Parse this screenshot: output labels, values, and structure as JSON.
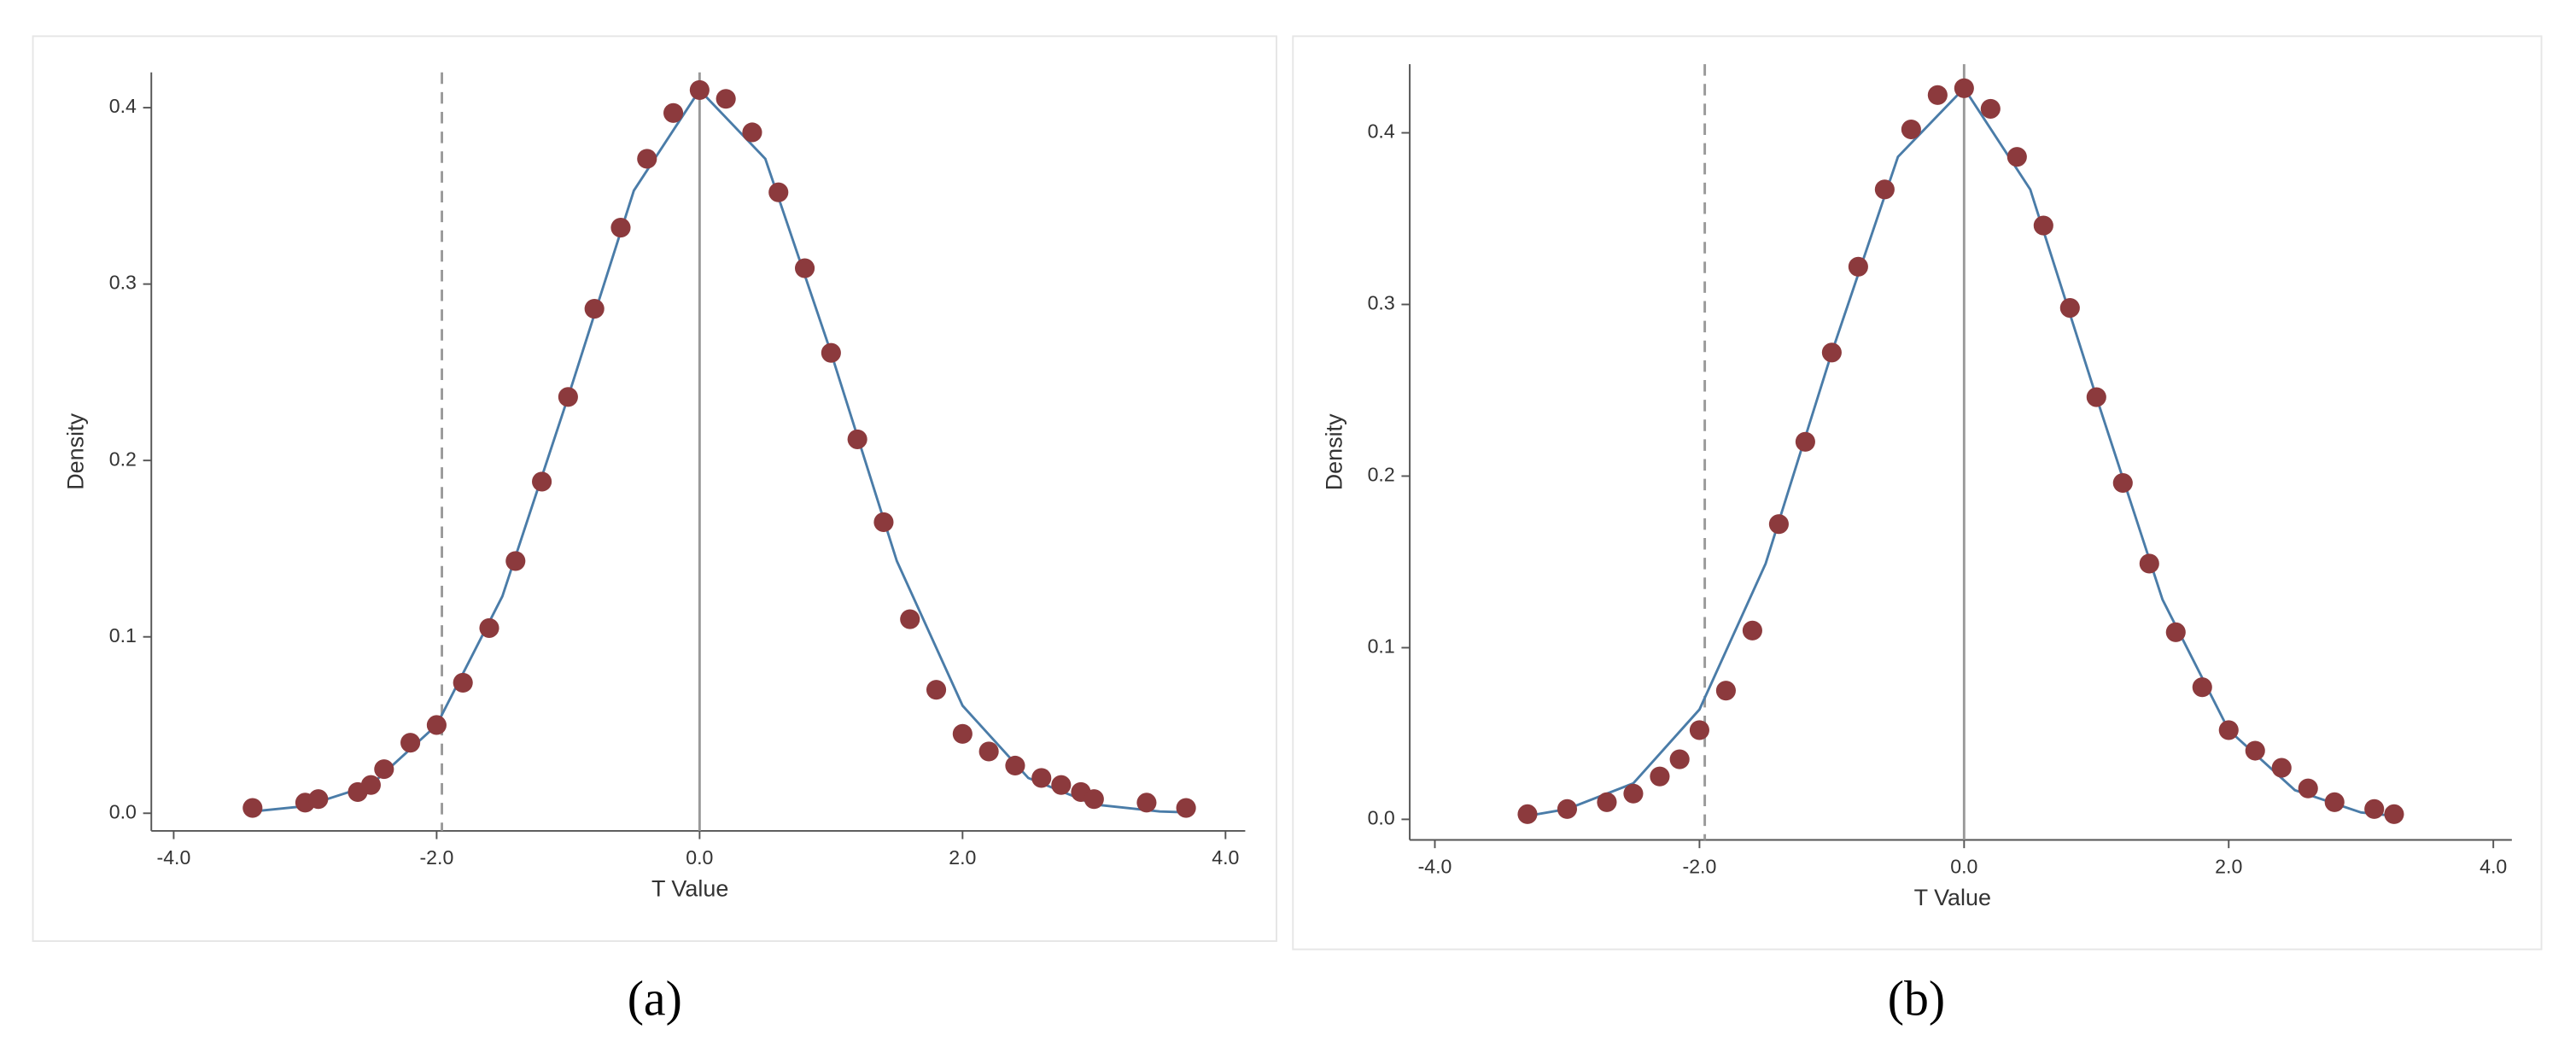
{
  "chart_data": [
    {
      "type": "scatter",
      "label": "(a)",
      "xlabel": "T Value",
      "ylabel": "Density",
      "xlim": [
        -4.17,
        4.15
      ],
      "ylim": [
        -0.01,
        0.42
      ],
      "xticks": [
        {
          "value": -4,
          "label": "-4.0"
        },
        {
          "value": -2,
          "label": "-2.0"
        },
        {
          "value": 0,
          "label": "0.0"
        },
        {
          "value": 2,
          "label": "2.0"
        },
        {
          "value": 4,
          "label": "4.0"
        }
      ],
      "yticks": [
        {
          "value": 0,
          "label": "0.0"
        },
        0.1,
        0.2,
        0.3,
        0.4
      ],
      "reference_lines": [
        {
          "x": -1.96,
          "style": "dashed"
        },
        {
          "x": 0,
          "style": "solid"
        }
      ],
      "series": [
        {
          "type": "line",
          "color": "#4a7ca8",
          "x": [
            -3.4,
            -3,
            -2.5,
            -2,
            -1.5,
            -1,
            -0.5,
            0,
            0.5,
            1,
            1.5,
            2,
            2.5,
            3,
            3.5,
            3.7
          ],
          "values": [
            0.001,
            0.004,
            0.016,
            0.05,
            0.123,
            0.236,
            0.353,
            0.41,
            0.371,
            0.261,
            0.143,
            0.061,
            0.02,
            0.005,
            0.001,
            0.0005
          ]
        },
        {
          "type": "scatter",
          "color": "#8c3a3d",
          "x": [
            -3.4,
            -3.0,
            -2.9,
            -2.6,
            -2.5,
            -2.4,
            -2.2,
            -2.0,
            -1.8,
            -1.6,
            -1.4,
            -1.2,
            -1.0,
            -0.8,
            -0.6,
            -0.4,
            -0.2,
            0,
            0.2,
            0.4,
            0.6,
            0.8,
            1.0,
            1.2,
            1.4,
            1.6,
            1.8,
            2.0,
            2.2,
            2.4,
            2.6,
            2.75,
            2.9,
            3.0,
            3.4,
            3.7
          ],
          "values": [
            0.003,
            0.006,
            0.008,
            0.012,
            0.016,
            0.025,
            0.04,
            0.05,
            0.074,
            0.105,
            0.143,
            0.188,
            0.236,
            0.286,
            0.332,
            0.371,
            0.397,
            0.41,
            0.405,
            0.386,
            0.352,
            0.309,
            0.261,
            0.212,
            0.165,
            0.11,
            0.07,
            0.045,
            0.035,
            0.027,
            0.02,
            0.016,
            0.012,
            0.008,
            0.006,
            0.003
          ]
        }
      ]
    },
    {
      "type": "scatter",
      "label": "(b)",
      "xlabel": "T Value",
      "ylabel": "Density",
      "xlim": [
        -4.19,
        4.14
      ],
      "ylim": [
        -0.012,
        0.44
      ],
      "xticks": [
        {
          "value": -4,
          "label": "-4.0"
        },
        {
          "value": -2,
          "label": "-2.0"
        },
        {
          "value": 0,
          "label": "0.0"
        },
        {
          "value": 2,
          "label": "2.0"
        },
        {
          "value": 4,
          "label": "4.0"
        }
      ],
      "yticks": [
        {
          "value": 0,
          "label": "0.0"
        },
        0.1,
        0.2,
        0.3,
        0.4
      ],
      "reference_lines": [
        {
          "x": -1.96,
          "style": "dashed"
        },
        {
          "x": 0,
          "style": "solid"
        }
      ],
      "series": [
        {
          "type": "line",
          "color": "#4a7ca8",
          "x": [
            -3.3,
            -3,
            -2.5,
            -2,
            -1.5,
            -1,
            -0.5,
            0,
            0.5,
            1,
            1.5,
            2,
            2.5,
            3,
            3.25
          ],
          "values": [
            0.002,
            0.006,
            0.021,
            0.064,
            0.149,
            0.272,
            0.386,
            0.426,
            0.367,
            0.246,
            0.128,
            0.052,
            0.017,
            0.004,
            0.002
          ]
        },
        {
          "type": "scatter",
          "color": "#8c3a3d",
          "x": [
            -3.3,
            -3.0,
            -2.7,
            -2.5,
            -2.3,
            -2.15,
            -2.0,
            -1.8,
            -1.6,
            -1.4,
            -1.2,
            -1.0,
            -0.8,
            -0.6,
            -0.4,
            -0.2,
            0,
            0.2,
            0.4,
            0.6,
            0.8,
            1.0,
            1.2,
            1.4,
            1.6,
            1.8,
            2.0,
            2.2,
            2.4,
            2.6,
            2.8,
            3.1,
            3.25
          ],
          "values": [
            0.003,
            0.006,
            0.01,
            0.015,
            0.025,
            0.035,
            0.052,
            0.075,
            0.11,
            0.172,
            0.22,
            0.272,
            0.322,
            0.367,
            0.402,
            0.422,
            0.426,
            0.414,
            0.386,
            0.346,
            0.298,
            0.246,
            0.196,
            0.149,
            0.109,
            0.077,
            0.052,
            0.04,
            0.03,
            0.018,
            0.01,
            0.006,
            0.003
          ]
        }
      ]
    }
  ]
}
